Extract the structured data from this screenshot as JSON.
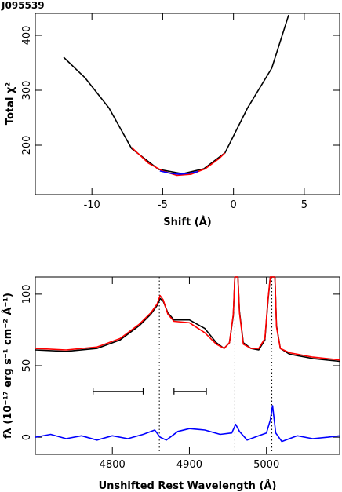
{
  "object_label": "J095539",
  "chart_data": [
    {
      "type": "line",
      "xlabel": "Shift (Å)",
      "ylabel": "Total χ²",
      "xlim": [
        -14,
        7.5
      ],
      "ylim": [
        110,
        440
      ],
      "xticks": [
        -10,
        -5,
        0,
        5
      ],
      "yticks": [
        200,
        300,
        400
      ],
      "grid": false,
      "series": [
        {
          "color": "#000000",
          "x": [
            -12.0,
            -10.5,
            -8.8,
            -7.2,
            -5.3,
            -3.6,
            -2.1,
            -0.6,
            1.0,
            2.7,
            3.9
          ],
          "y": [
            360,
            323,
            268,
            194,
            156,
            148,
            157,
            186,
            268,
            340,
            437
          ]
        },
        {
          "color": "#ff0000",
          "x": [
            -7.2,
            -6.0,
            -5.0,
            -4.0,
            -3.0,
            -2.0,
            -1.0,
            -0.6
          ],
          "y": [
            196,
            167,
            153,
            145,
            147,
            157,
            176,
            186
          ]
        },
        {
          "color": "#0000ff",
          "x": [
            -5.2,
            -4.5,
            -3.8,
            -3.1,
            -2.5
          ],
          "y": [
            153,
            149,
            147,
            149,
            152
          ]
        }
      ]
    },
    {
      "type": "line",
      "xlabel": "Unshifted Rest Wavelength (Å)",
      "ylabel": "fλ (10⁻¹⁷ erg s⁻¹ cm⁻² Å⁻¹)",
      "xlim": [
        4700,
        5095
      ],
      "ylim": [
        -12,
        112
      ],
      "xticks": [
        4800,
        4900,
        5000
      ],
      "yticks": [
        0,
        50,
        100
      ],
      "grid": false,
      "series": [
        {
          "color": "#000000",
          "x": [
            4700,
            4740,
            4780,
            4810,
            4835,
            4850,
            4858,
            4862,
            4866,
            4872,
            4880,
            4900,
            4920,
            4935,
            4945,
            4952,
            4957,
            4959,
            4961,
            4963,
            4965,
            4970,
            4980,
            4990,
            4998,
            5002,
            5005,
            5007,
            5009,
            5011,
            5013,
            5018,
            5030,
            5060,
            5095
          ],
          "y": [
            61,
            60,
            62,
            68,
            78,
            86,
            92,
            97,
            95,
            87,
            82,
            82,
            76,
            66,
            62,
            66,
            85,
            112,
            112,
            112,
            88,
            66,
            62,
            61,
            68,
            95,
            112,
            112,
            112,
            112,
            78,
            62,
            58,
            55,
            53
          ]
        },
        {
          "color": "#ff0000",
          "x": [
            4700,
            4740,
            4780,
            4810,
            4835,
            4850,
            4858,
            4862,
            4866,
            4872,
            4880,
            4900,
            4920,
            4935,
            4945,
            4952,
            4957,
            4959,
            4961,
            4963,
            4965,
            4970,
            4980,
            4990,
            4998,
            5002,
            5005,
            5007,
            5009,
            5011,
            5013,
            5018,
            5030,
            5060,
            5095
          ],
          "y": [
            62,
            61,
            63,
            69,
            79,
            87,
            93,
            99,
            96,
            86,
            81,
            80,
            73,
            65,
            62,
            66,
            86,
            112,
            112,
            112,
            87,
            65,
            62,
            62,
            69,
            96,
            112,
            112,
            112,
            112,
            77,
            62,
            59,
            56,
            54
          ]
        },
        {
          "color": "#0000ff",
          "x": [
            4700,
            4720,
            4740,
            4760,
            4780,
            4800,
            4820,
            4840,
            4855,
            4862,
            4870,
            4885,
            4900,
            4920,
            4940,
            4955,
            4960,
            4965,
            4975,
            4990,
            5000,
            5005,
            5008,
            5012,
            5020,
            5040,
            5060,
            5080,
            5095
          ],
          "y": [
            0,
            2,
            -1,
            1,
            -2,
            1,
            -1,
            2,
            5,
            0,
            -2,
            4,
            6,
            5,
            2,
            3,
            9,
            4,
            -2,
            1,
            3,
            12,
            22,
            3,
            -3,
            1,
            -1,
            0,
            1
          ]
        }
      ],
      "reference_lines_x": [
        4861,
        4959,
        5007
      ],
      "range_bars": [
        {
          "x": [
            4775,
            4840
          ],
          "y": 32
        },
        {
          "x": [
            4880,
            4922
          ],
          "y": 32
        }
      ]
    }
  ]
}
